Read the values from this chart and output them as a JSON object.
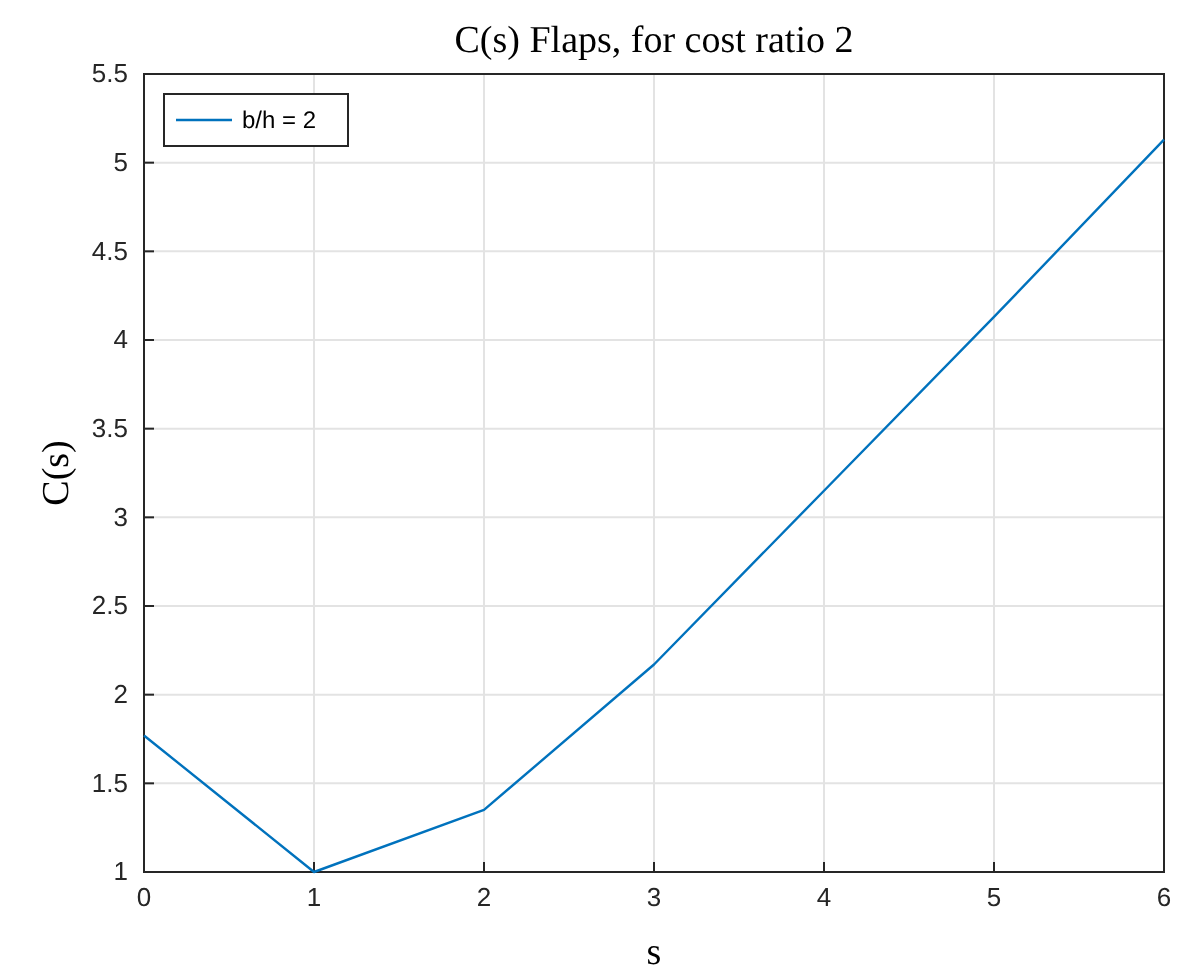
{
  "chart_data": {
    "type": "line",
    "title": "C(s) Flaps, for cost ratio 2",
    "xlabel": "s",
    "ylabel": "C(s)",
    "x": [
      0,
      1,
      2,
      3,
      4,
      5,
      6
    ],
    "series": [
      {
        "name": "b/h = 2",
        "color": "#0072bd",
        "values": [
          1.77,
          1.0,
          1.35,
          2.17,
          3.15,
          4.13,
          5.13
        ]
      }
    ],
    "xlim": [
      0,
      6
    ],
    "xticks": [
      0,
      1,
      2,
      3,
      4,
      5,
      6
    ],
    "ylim": [
      1,
      5.5
    ],
    "yticks": [
      1,
      1.5,
      2,
      2.5,
      3,
      3.5,
      4,
      4.5,
      5,
      5.5
    ],
    "grid": true,
    "legend": "top left"
  }
}
